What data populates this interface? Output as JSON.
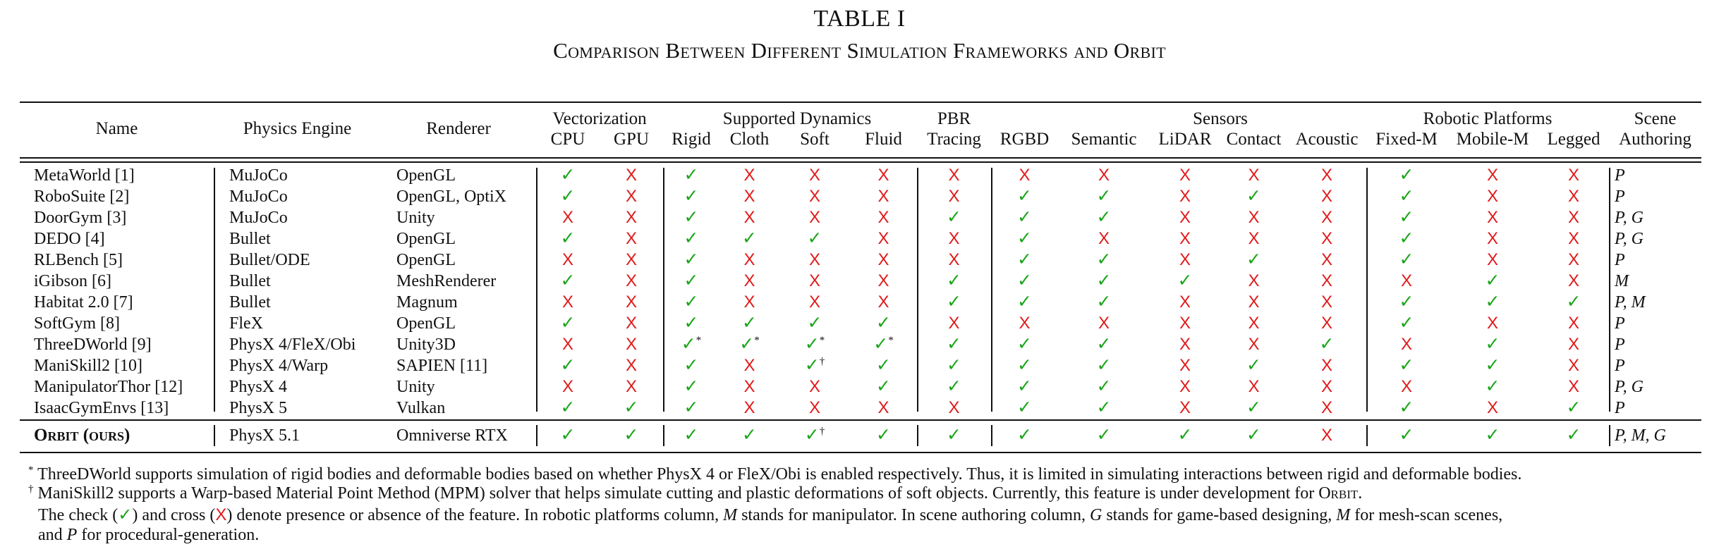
{
  "table_label": "TABLE I",
  "table_title": "Comparison Between Different Simulation Frameworks and Orbit",
  "groups": {
    "vectorization": "Vectorization",
    "dynamics": "Supported Dynamics",
    "pbr": "PBR",
    "sensors": "Sensors",
    "robotic": "Robotic Platforms",
    "scene": "Scene"
  },
  "columns": {
    "name": "Name",
    "engine": "Physics Engine",
    "renderer": "Renderer",
    "cpu": "CPU",
    "gpu": "GPU",
    "rigid": "Rigid",
    "cloth": "Cloth",
    "soft": "Soft",
    "fluid": "Fluid",
    "tracing": "Tracing",
    "rgbd": "RGBD",
    "semantic": "Semantic",
    "lidar": "LiDAR",
    "contact": "Contact",
    "acoustic": "Acoustic",
    "fixed": "Fixed-M",
    "mobile": "Mobile-M",
    "legged": "Legged",
    "authoring": "Authoring"
  },
  "rows": [
    {
      "name": "MetaWorld [1]",
      "engine": "MuJoCo",
      "renderer": "OpenGL",
      "marks": [
        "y",
        "n",
        "y",
        "n",
        "n",
        "n",
        "n",
        "n",
        "n",
        "n",
        "n",
        "n",
        "y",
        "n",
        "n"
      ],
      "notes": [
        "",
        "",
        "",
        "",
        "",
        "",
        "",
        "",
        "",
        "",
        "",
        "",
        "",
        "",
        ""
      ],
      "authoring": "P"
    },
    {
      "name": "RoboSuite [2]",
      "engine": "MuJoCo",
      "renderer": "OpenGL, OptiX",
      "marks": [
        "y",
        "n",
        "y",
        "n",
        "n",
        "n",
        "n",
        "y",
        "y",
        "n",
        "y",
        "n",
        "y",
        "n",
        "n"
      ],
      "notes": [
        "",
        "",
        "",
        "",
        "",
        "",
        "",
        "",
        "",
        "",
        "",
        "",
        "",
        "",
        ""
      ],
      "authoring": "P"
    },
    {
      "name": "DoorGym [3]",
      "engine": "MuJoCo",
      "renderer": "Unity",
      "marks": [
        "n",
        "n",
        "y",
        "n",
        "n",
        "n",
        "y",
        "y",
        "y",
        "n",
        "n",
        "n",
        "y",
        "n",
        "n"
      ],
      "notes": [
        "",
        "",
        "",
        "",
        "",
        "",
        "",
        "",
        "",
        "",
        "",
        "",
        "",
        "",
        ""
      ],
      "authoring": "P, G"
    },
    {
      "name": "DEDO [4]",
      "engine": "Bullet",
      "renderer": "OpenGL",
      "marks": [
        "y",
        "n",
        "y",
        "y",
        "y",
        "n",
        "n",
        "y",
        "n",
        "n",
        "n",
        "n",
        "y",
        "n",
        "n"
      ],
      "notes": [
        "",
        "",
        "",
        "",
        "",
        "",
        "",
        "",
        "",
        "",
        "",
        "",
        "",
        "",
        ""
      ],
      "authoring": "P, G"
    },
    {
      "name": "RLBench [5]",
      "engine": "Bullet/ODE",
      "renderer": "OpenGL",
      "marks": [
        "n",
        "n",
        "y",
        "n",
        "n",
        "n",
        "n",
        "y",
        "y",
        "n",
        "y",
        "n",
        "y",
        "n",
        "n"
      ],
      "notes": [
        "",
        "",
        "",
        "",
        "",
        "",
        "",
        "",
        "",
        "",
        "",
        "",
        "",
        "",
        ""
      ],
      "authoring": "P"
    },
    {
      "name": "iGibson [6]",
      "engine": "Bullet",
      "renderer": "MeshRenderer",
      "marks": [
        "y",
        "n",
        "y",
        "n",
        "n",
        "n",
        "y",
        "y",
        "y",
        "y",
        "n",
        "n",
        "n",
        "y",
        "n"
      ],
      "notes": [
        "",
        "",
        "",
        "",
        "",
        "",
        "",
        "",
        "",
        "",
        "",
        "",
        "",
        "",
        ""
      ],
      "authoring": "M"
    },
    {
      "name": "Habitat 2.0 [7]",
      "engine": "Bullet",
      "renderer": "Magnum",
      "marks": [
        "n",
        "n",
        "y",
        "n",
        "n",
        "n",
        "y",
        "y",
        "y",
        "n",
        "n",
        "n",
        "y",
        "y",
        "y"
      ],
      "notes": [
        "",
        "",
        "",
        "",
        "",
        "",
        "",
        "",
        "",
        "",
        "",
        "",
        "",
        "",
        ""
      ],
      "authoring": "P, M"
    },
    {
      "name": "SoftGym [8]",
      "engine": "FleX",
      "renderer": "OpenGL",
      "marks": [
        "y",
        "n",
        "y",
        "y",
        "y",
        "y",
        "n",
        "n",
        "n",
        "n",
        "n",
        "n",
        "y",
        "n",
        "n"
      ],
      "notes": [
        "",
        "",
        "",
        "",
        "",
        "",
        "",
        "",
        "",
        "",
        "",
        "",
        "",
        "",
        ""
      ],
      "authoring": "P"
    },
    {
      "name": "ThreeDWorld [9]",
      "engine": "PhysX 4/FleX/Obi",
      "renderer": "Unity3D",
      "marks": [
        "n",
        "n",
        "y",
        "y",
        "y",
        "y",
        "y",
        "y",
        "y",
        "n",
        "n",
        "y",
        "n",
        "y",
        "n"
      ],
      "notes": [
        "",
        "",
        "*",
        "*",
        "*",
        "*",
        "",
        "",
        "",
        "",
        "",
        "",
        "",
        "",
        ""
      ],
      "authoring": "P"
    },
    {
      "name": "ManiSkill2 [10]",
      "engine": "PhysX 4/Warp",
      "renderer": "SAPIEN [11]",
      "marks": [
        "y",
        "n",
        "y",
        "n",
        "y",
        "y",
        "y",
        "y",
        "y",
        "n",
        "y",
        "n",
        "y",
        "y",
        "n"
      ],
      "notes": [
        "",
        "",
        "",
        "",
        "†",
        "",
        "",
        "",
        "",
        "",
        "",
        "",
        "",
        "",
        ""
      ],
      "authoring": "P"
    },
    {
      "name": "ManipulatorThor [12]",
      "engine": "PhysX 4",
      "renderer": "Unity",
      "marks": [
        "n",
        "n",
        "y",
        "n",
        "n",
        "y",
        "y",
        "y",
        "y",
        "n",
        "n",
        "n",
        "n",
        "y",
        "n"
      ],
      "notes": [
        "",
        "",
        "",
        "",
        "",
        "",
        "",
        "",
        "",
        "",
        "",
        "",
        "",
        "",
        ""
      ],
      "authoring": "P, G"
    },
    {
      "name": "IsaacGymEnvs [13]",
      "engine": "PhysX 5",
      "renderer": "Vulkan",
      "marks": [
        "y",
        "y",
        "y",
        "n",
        "n",
        "n",
        "n",
        "y",
        "y",
        "n",
        "y",
        "n",
        "y",
        "n",
        "y"
      ],
      "notes": [
        "",
        "",
        "",
        "",
        "",
        "",
        "",
        "",
        "",
        "",
        "",
        "",
        "",
        "",
        ""
      ],
      "authoring": "P"
    }
  ],
  "orbit_row": {
    "name": "Orbit (ours)",
    "engine": "PhysX 5.1",
    "renderer": "Omniverse RTX",
    "marks": [
      "y",
      "y",
      "y",
      "y",
      "y",
      "y",
      "y",
      "y",
      "y",
      "y",
      "y",
      "n",
      "y",
      "y",
      "y"
    ],
    "notes": [
      "",
      "",
      "",
      "",
      "†",
      "",
      "",
      "",
      "",
      "",
      "",
      "",
      "",
      "",
      ""
    ],
    "authoring": "P, M, G"
  },
  "footnotes": {
    "star_mark": "*",
    "star_text": "ThreeDWorld supports simulation of rigid bodies and deformable bodies based on whether PhysX 4 or FleX/Obi is enabled respectively. Thus, it is limited in simulating interactions between rigid and deformable bodies.",
    "dagger_mark": "†",
    "dagger_text_a": "ManiSkill2 supports a Warp-based Material Point Method (MPM) solver that helps simulate cutting and plastic deformations of soft objects. Currently, this feature is under development for",
    "dagger_orbit": "Orbit",
    "dagger_text_b": ".",
    "legend_a": "The check (",
    "legend_check": "✓",
    "legend_b": ") and cross (",
    "legend_cross": "X",
    "legend_c": ") denote presence or absence of the feature. In robotic platforms column,",
    "legend_m1": "M",
    "legend_d": "stands for manipulator. In scene authoring column,",
    "legend_g": "G",
    "legend_e": "stands for game-based designing,",
    "legend_m2": "M",
    "legend_f": "for mesh-scan scenes,",
    "legend_g2": "and",
    "legend_p": "P",
    "legend_h": "for procedural-generation."
  },
  "colors": {
    "check": "#1aa51a",
    "cross": "#e01a1a"
  }
}
